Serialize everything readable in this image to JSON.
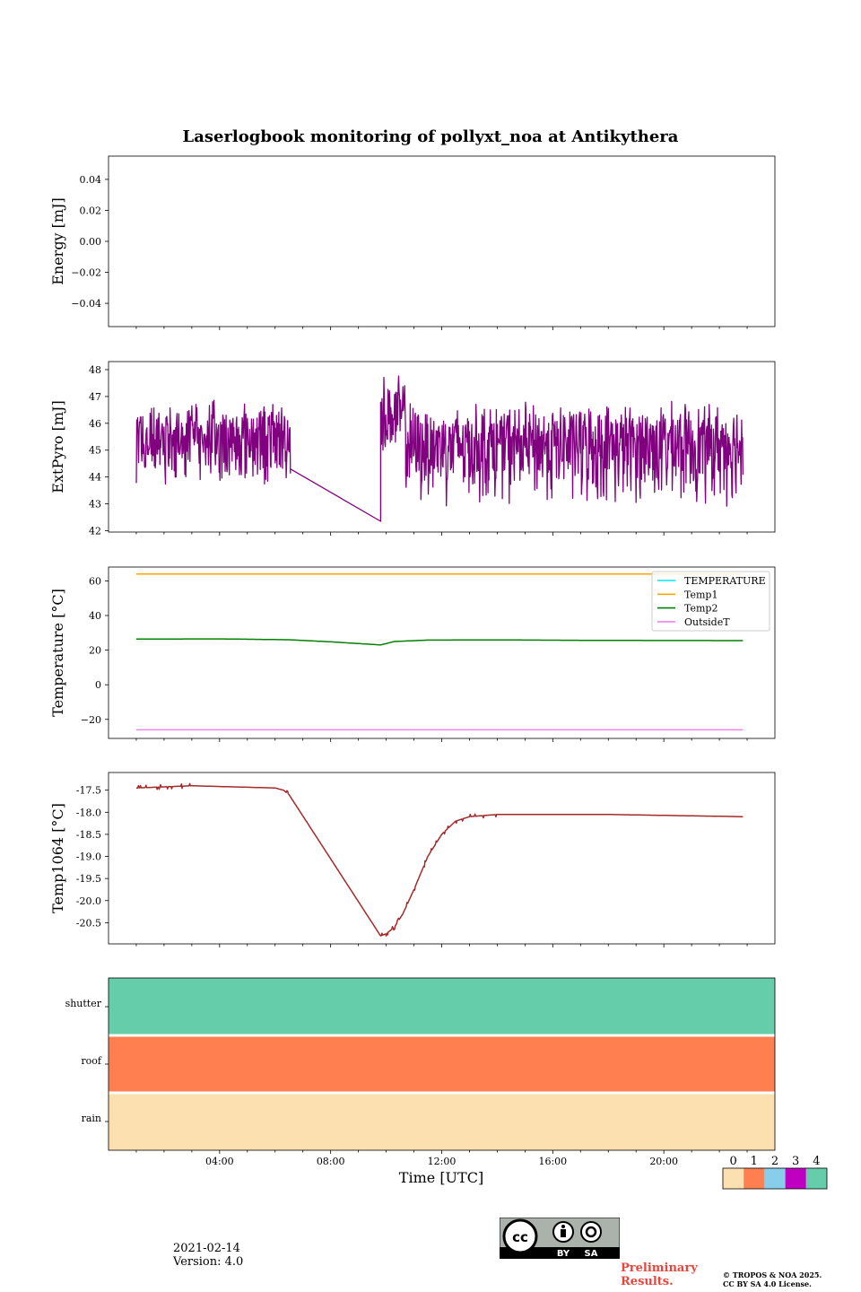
{
  "chart_title": "Laserlogbook monitoring of pollyxt_noa at Antikythera",
  "xlabel": "Time [UTC]",
  "x_ticks": [
    "04:00",
    "08:00",
    "12:00",
    "16:00",
    "20:00"
  ],
  "footer": {
    "date": "2021-02-14",
    "version": "Version: 4.0",
    "preliminary_line1": "Preliminary",
    "preliminary_line2": "Results.",
    "copyright_line1": "© TROPOS & NOA 2025.",
    "copyright_line2": "CC BY SA 4.0 License.",
    "cc_by": "BY",
    "cc_sa": "SA"
  },
  "chart_data": [
    {
      "type": "line",
      "ylabel": "Energy [mJ]",
      "ylim": [
        -0.055,
        0.055
      ],
      "yticks": [
        "0.04",
        "0.02",
        "0.00",
        "−0.02",
        "−0.04"
      ],
      "ytick_values": [
        0.04,
        0.02,
        0.0,
        -0.02,
        -0.04
      ],
      "series": []
    },
    {
      "type": "line",
      "ylabel": "ExtPyro [mJ]",
      "ylim": [
        41.95,
        48.3
      ],
      "yticks": [
        "42",
        "43",
        "44",
        "45",
        "46",
        "47",
        "48"
      ],
      "ytick_values": [
        42,
        43,
        44,
        45,
        46,
        47,
        48
      ],
      "series": [
        {
          "color": "#800080",
          "segments": [
            {
              "x_start": 1.0,
              "x_end": 6.55,
              "mean": 45.5,
              "amp_up": 1.5,
              "amp_down": 2.0
            },
            {
              "x_start": 6.55,
              "x_end": 9.8,
              "from": 44.3,
              "to": 42.35
            },
            {
              "x_start": 9.8,
              "x_end": 10.7,
              "mean": 46.3,
              "amp_up": 1.7,
              "amp_down": 1.8
            },
            {
              "x_start": 10.7,
              "x_end": 22.85,
              "mean": 45.3,
              "amp_up": 1.6,
              "amp_down": 2.5
            }
          ]
        }
      ]
    },
    {
      "type": "line",
      "ylabel": "Temperature [°C]",
      "ylim": [
        -31,
        68
      ],
      "yticks": [
        "60",
        "40",
        "20",
        "0",
        "−20"
      ],
      "ytick_values": [
        60,
        40,
        20,
        0,
        -20
      ],
      "legend": "top-right",
      "series": [
        {
          "name": "TEMPERATURE",
          "color": "#00e5ee",
          "points": []
        },
        {
          "name": "Temp1",
          "color": "#ffa500",
          "points": [
            [
              1.0,
              64
            ],
            [
              22.85,
              64
            ]
          ]
        },
        {
          "name": "Temp2",
          "color": "#008000",
          "points": [
            [
              1.0,
              26.4
            ],
            [
              4.0,
              26.5
            ],
            [
              6.5,
              26.0
            ],
            [
              8.0,
              24.8
            ],
            [
              9.8,
              23.0
            ],
            [
              10.3,
              25.0
            ],
            [
              11.5,
              25.8
            ],
            [
              14.0,
              25.9
            ],
            [
              18.0,
              25.6
            ],
            [
              22.85,
              25.5
            ]
          ]
        },
        {
          "name": "OutsideT",
          "color": "#ee82ee",
          "points": [
            [
              1.0,
              -26
            ],
            [
              22.85,
              -26
            ]
          ]
        }
      ]
    },
    {
      "type": "line",
      "ylabel": "Temp1064 [°C]",
      "ylim": [
        -20.98,
        -17.1
      ],
      "yticks": [
        "-17.5",
        "-18.0",
        "-18.5",
        "-19.0",
        "-19.5",
        "-20.0",
        "-20.5"
      ],
      "ytick_values": [
        -17.5,
        -18.0,
        -18.5,
        -19.0,
        -19.5,
        -20.0,
        -20.5
      ],
      "series": [
        {
          "color": "#a52a2a",
          "points": [
            [
              1.0,
              -17.45
            ],
            [
              3.0,
              -17.4
            ],
            [
              6.0,
              -17.45
            ],
            [
              6.3,
              -17.5
            ],
            [
              6.5,
              -17.6
            ],
            [
              9.8,
              -20.8
            ],
            [
              10.0,
              -20.75
            ],
            [
              10.3,
              -20.6
            ],
            [
              10.6,
              -20.3
            ],
            [
              11.0,
              -19.75
            ],
            [
              11.5,
              -19.0
            ],
            [
              12.0,
              -18.5
            ],
            [
              12.5,
              -18.2
            ],
            [
              13.0,
              -18.1
            ],
            [
              14.0,
              -18.05
            ],
            [
              18.0,
              -18.05
            ],
            [
              22.85,
              -18.1
            ]
          ]
        }
      ]
    },
    {
      "type": "heatmap",
      "rows": [
        "shutter",
        "roof",
        "rain"
      ],
      "row_values": [
        4,
        1,
        0
      ],
      "colorbar": {
        "labels": [
          "0",
          "1",
          "2",
          "3",
          "4"
        ],
        "colors": [
          "#fde0b0",
          "#ff7f50",
          "#87ceeb",
          "#c000c0",
          "#66cdaa"
        ]
      }
    }
  ]
}
